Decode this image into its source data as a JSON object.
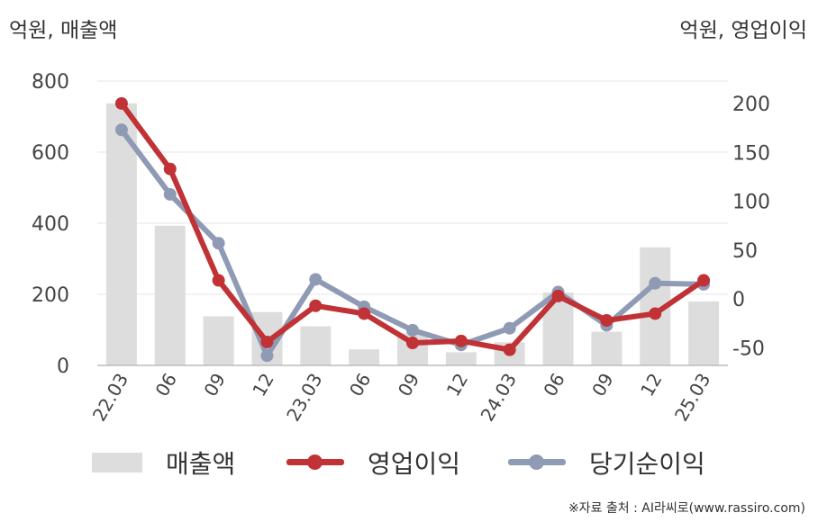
{
  "chart_data": {
    "type": "bar+line",
    "left_axis_unit": "억원, 매출액",
    "right_axis_unit": "억원, 영업이익",
    "categories": [
      "22.03",
      "06",
      "09",
      "12",
      "23.03",
      "06",
      "09",
      "12",
      "24.03",
      "06",
      "09",
      "12",
      "25.03"
    ],
    "left_ylim": [
      0,
      800
    ],
    "left_ticks": [
      "800",
      "600",
      "400",
      "200",
      "0"
    ],
    "left_tick_values": [
      800,
      600,
      400,
      200,
      0
    ],
    "right_ylim": [
      -68,
      223
    ],
    "right_ticks": [
      "200",
      "150",
      "100",
      "50",
      "0",
      "-50"
    ],
    "right_tick_values": [
      200,
      150,
      100,
      50,
      0,
      -50
    ],
    "grid": true,
    "legend_position": "bottom",
    "series": [
      {
        "name": "매출액",
        "kind": "bar",
        "axis": "left",
        "color": "#dddddd",
        "values": [
          737,
          393,
          138,
          150,
          110,
          45,
          90,
          37,
          65,
          205,
          95,
          332,
          180
        ]
      },
      {
        "name": "영업이익",
        "kind": "line",
        "axis": "right",
        "color": "#c03235",
        "values": [
          200,
          133,
          19,
          -44,
          -7,
          -15,
          -45,
          -43,
          -52,
          3,
          -22,
          -15,
          19
        ]
      },
      {
        "name": "당기순이익",
        "kind": "line",
        "axis": "right",
        "color": "#8f9bb5",
        "values": [
          173,
          107,
          57,
          -58,
          20,
          -8,
          -32,
          -47,
          -30,
          7,
          -27,
          16,
          15
        ]
      }
    ]
  },
  "legend": {
    "bar_label": "매출액",
    "line1_label": "영업이익",
    "line2_label": "당기순이익"
  },
  "source": "※자료 출처 : AI라씨로(www.rassiro.com)"
}
